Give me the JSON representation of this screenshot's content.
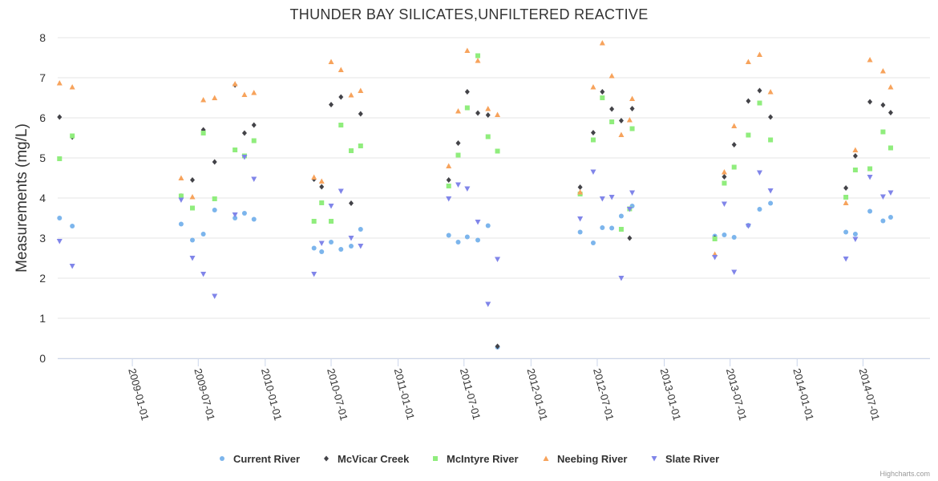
{
  "chart_data": {
    "type": "scatter",
    "title": "THUNDER BAY SILICATES,UNFILTERED REACTIVE",
    "ylabel": "Measurements (mg/L)",
    "xlabel": "",
    "x_axis_type": "datetime",
    "xlim": [
      "2008-06-10",
      "2015-01-01"
    ],
    "ylim": [
      0,
      8
    ],
    "yticks": [
      0,
      1,
      2,
      3,
      4,
      5,
      6,
      7,
      8
    ],
    "xticks": [
      "2009-01-01",
      "2009-07-01",
      "2010-01-01",
      "2010-07-01",
      "2011-01-01",
      "2011-07-01",
      "2012-01-01",
      "2012-07-01",
      "2013-01-01",
      "2013-07-01",
      "2014-01-01",
      "2014-07-01"
    ],
    "grid": true,
    "legend_position": "bottom-center",
    "series": [
      {
        "name": "Current River",
        "color": "#7cb5ec",
        "marker": "circle",
        "points": [
          [
            "2008-06-15",
            3.5
          ],
          [
            "2008-07-20",
            3.3
          ],
          [
            "2009-05-15",
            3.35
          ],
          [
            "2009-06-15",
            2.95
          ],
          [
            "2009-07-15",
            3.1
          ],
          [
            "2009-08-15",
            3.7
          ],
          [
            "2009-10-10",
            3.5
          ],
          [
            "2009-11-05",
            3.62
          ],
          [
            "2009-12-01",
            3.47
          ],
          [
            "2010-05-15",
            2.75
          ],
          [
            "2010-06-05",
            2.66
          ],
          [
            "2010-07-01",
            2.9
          ],
          [
            "2010-07-28",
            2.72
          ],
          [
            "2010-08-25",
            2.8
          ],
          [
            "2010-09-20",
            3.22
          ],
          [
            "2011-05-20",
            3.07
          ],
          [
            "2011-06-15",
            2.9
          ],
          [
            "2011-07-10",
            3.03
          ],
          [
            "2011-08-08",
            2.95
          ],
          [
            "2011-09-05",
            3.31
          ],
          [
            "2011-10-01",
            0.28
          ],
          [
            "2012-05-15",
            3.15
          ],
          [
            "2012-06-20",
            2.88
          ],
          [
            "2012-07-15",
            3.26
          ],
          [
            "2012-08-10",
            3.25
          ],
          [
            "2012-09-05",
            3.55
          ],
          [
            "2012-10-05",
            3.8
          ],
          [
            "2013-05-20",
            3.05
          ],
          [
            "2013-06-15",
            3.08
          ],
          [
            "2013-07-12",
            3.02
          ],
          [
            "2013-08-20",
            3.32
          ],
          [
            "2013-09-20",
            3.72
          ],
          [
            "2013-10-20",
            3.87
          ],
          [
            "2014-05-15",
            3.15
          ],
          [
            "2014-06-10",
            3.1
          ],
          [
            "2014-07-20",
            3.67
          ],
          [
            "2014-08-25",
            3.43
          ],
          [
            "2014-09-15",
            3.52
          ]
        ]
      },
      {
        "name": "McVicar Creek",
        "color": "#434348",
        "marker": "diamond",
        "points": [
          [
            "2008-06-15",
            6.02
          ],
          [
            "2008-07-20",
            5.52
          ],
          [
            "2009-05-15",
            4.05
          ],
          [
            "2009-06-15",
            4.45
          ],
          [
            "2009-07-15",
            5.7
          ],
          [
            "2009-08-15",
            4.9
          ],
          [
            "2009-10-10",
            6.82
          ],
          [
            "2009-11-05",
            5.62
          ],
          [
            "2009-12-01",
            5.82
          ],
          [
            "2010-05-15",
            4.47
          ],
          [
            "2010-06-05",
            4.28
          ],
          [
            "2010-07-01",
            6.33
          ],
          [
            "2010-07-28",
            6.52
          ],
          [
            "2010-08-25",
            3.87
          ],
          [
            "2010-09-20",
            6.1
          ],
          [
            "2011-05-20",
            4.45
          ],
          [
            "2011-06-15",
            5.37
          ],
          [
            "2011-07-10",
            6.65
          ],
          [
            "2011-08-08",
            6.12
          ],
          [
            "2011-09-05",
            6.07
          ],
          [
            "2011-10-01",
            0.3
          ],
          [
            "2012-05-15",
            4.27
          ],
          [
            "2012-06-20",
            5.63
          ],
          [
            "2012-07-15",
            6.65
          ],
          [
            "2012-08-10",
            6.22
          ],
          [
            "2012-09-05",
            5.93
          ],
          [
            "2012-09-28",
            3.0
          ],
          [
            "2012-10-05",
            6.23
          ],
          [
            "2013-05-20",
            3.0
          ],
          [
            "2013-06-15",
            4.53
          ],
          [
            "2013-07-12",
            5.33
          ],
          [
            "2013-08-20",
            6.42
          ],
          [
            "2013-09-20",
            6.68
          ],
          [
            "2013-10-20",
            6.02
          ],
          [
            "2014-05-15",
            4.25
          ],
          [
            "2014-06-10",
            5.05
          ],
          [
            "2014-07-20",
            6.4
          ],
          [
            "2014-08-25",
            6.32
          ],
          [
            "2014-09-15",
            6.13
          ]
        ]
      },
      {
        "name": "McIntyre River",
        "color": "#90ed7d",
        "marker": "square",
        "points": [
          [
            "2008-06-15",
            4.98
          ],
          [
            "2008-07-20",
            5.55
          ],
          [
            "2009-05-15",
            4.05
          ],
          [
            "2009-06-15",
            3.75
          ],
          [
            "2009-07-15",
            5.62
          ],
          [
            "2009-08-15",
            3.98
          ],
          [
            "2009-10-10",
            5.2
          ],
          [
            "2009-11-05",
            5.05
          ],
          [
            "2009-12-01",
            5.43
          ],
          [
            "2010-05-15",
            3.42
          ],
          [
            "2010-06-05",
            3.88
          ],
          [
            "2010-07-01",
            3.42
          ],
          [
            "2010-07-28",
            5.82
          ],
          [
            "2010-08-25",
            5.18
          ],
          [
            "2010-09-20",
            5.3
          ],
          [
            "2011-05-20",
            4.3
          ],
          [
            "2011-06-15",
            5.07
          ],
          [
            "2011-07-10",
            6.25
          ],
          [
            "2011-08-08",
            7.55
          ],
          [
            "2011-09-05",
            5.53
          ],
          [
            "2011-10-01",
            5.17
          ],
          [
            "2012-05-15",
            4.1
          ],
          [
            "2012-06-20",
            5.45
          ],
          [
            "2012-07-15",
            6.5
          ],
          [
            "2012-08-10",
            5.9
          ],
          [
            "2012-09-05",
            3.22
          ],
          [
            "2012-09-28",
            3.73
          ],
          [
            "2012-10-05",
            5.73
          ],
          [
            "2013-05-20",
            2.98
          ],
          [
            "2013-06-15",
            4.37
          ],
          [
            "2013-07-12",
            4.77
          ],
          [
            "2013-08-20",
            5.57
          ],
          [
            "2013-09-20",
            6.37
          ],
          [
            "2013-10-20",
            5.45
          ],
          [
            "2014-05-15",
            4.02
          ],
          [
            "2014-06-10",
            4.7
          ],
          [
            "2014-07-20",
            4.73
          ],
          [
            "2014-08-25",
            5.65
          ],
          [
            "2014-09-15",
            5.25
          ]
        ]
      },
      {
        "name": "Neebing River",
        "color": "#f7a35c",
        "marker": "triangle",
        "points": [
          [
            "2008-06-15",
            6.87
          ],
          [
            "2008-07-20",
            6.77
          ],
          [
            "2009-05-15",
            4.5
          ],
          [
            "2009-06-15",
            4.03
          ],
          [
            "2009-07-15",
            6.45
          ],
          [
            "2009-08-15",
            6.5
          ],
          [
            "2009-10-10",
            6.85
          ],
          [
            "2009-11-05",
            6.58
          ],
          [
            "2009-12-01",
            6.63
          ],
          [
            "2010-05-15",
            4.52
          ],
          [
            "2010-06-05",
            4.42
          ],
          [
            "2010-07-01",
            7.4
          ],
          [
            "2010-07-28",
            7.2
          ],
          [
            "2010-08-25",
            6.57
          ],
          [
            "2010-09-20",
            6.68
          ],
          [
            "2011-05-20",
            4.8
          ],
          [
            "2011-06-15",
            6.17
          ],
          [
            "2011-07-10",
            7.68
          ],
          [
            "2011-08-08",
            7.43
          ],
          [
            "2011-09-05",
            6.23
          ],
          [
            "2011-10-01",
            6.08
          ],
          [
            "2012-05-15",
            4.15
          ],
          [
            "2012-06-20",
            6.77
          ],
          [
            "2012-07-15",
            7.87
          ],
          [
            "2012-08-10",
            7.05
          ],
          [
            "2012-09-05",
            5.58
          ],
          [
            "2012-09-28",
            5.95
          ],
          [
            "2012-10-05",
            6.48
          ],
          [
            "2013-05-20",
            2.6
          ],
          [
            "2013-06-15",
            4.65
          ],
          [
            "2013-07-12",
            5.8
          ],
          [
            "2013-08-20",
            7.4
          ],
          [
            "2013-09-20",
            7.58
          ],
          [
            "2013-10-20",
            6.65
          ],
          [
            "2014-05-15",
            3.88
          ],
          [
            "2014-06-10",
            5.2
          ],
          [
            "2014-07-20",
            7.45
          ],
          [
            "2014-08-25",
            7.17
          ],
          [
            "2014-09-15",
            6.77
          ]
        ]
      },
      {
        "name": "Slate River",
        "color": "#8085e9",
        "marker": "triangle-down",
        "points": [
          [
            "2008-06-15",
            2.92
          ],
          [
            "2008-07-20",
            2.3
          ],
          [
            "2009-05-15",
            3.95
          ],
          [
            "2009-06-15",
            2.5
          ],
          [
            "2009-07-15",
            2.1
          ],
          [
            "2009-08-15",
            1.55
          ],
          [
            "2009-10-10",
            3.58
          ],
          [
            "2009-11-05",
            5.02
          ],
          [
            "2009-12-01",
            4.47
          ],
          [
            "2010-05-15",
            2.1
          ],
          [
            "2010-06-05",
            2.87
          ],
          [
            "2010-07-01",
            3.8
          ],
          [
            "2010-07-28",
            4.17
          ],
          [
            "2010-08-25",
            3.0
          ],
          [
            "2010-09-20",
            2.8
          ],
          [
            "2011-05-20",
            3.98
          ],
          [
            "2011-06-15",
            4.33
          ],
          [
            "2011-07-10",
            4.23
          ],
          [
            "2011-08-08",
            3.4
          ],
          [
            "2011-09-05",
            1.35
          ],
          [
            "2011-10-01",
            2.47
          ],
          [
            "2012-05-15",
            3.48
          ],
          [
            "2012-06-20",
            4.65
          ],
          [
            "2012-07-15",
            3.98
          ],
          [
            "2012-08-10",
            4.02
          ],
          [
            "2012-09-05",
            2.0
          ],
          [
            "2012-09-28",
            3.72
          ],
          [
            "2012-10-05",
            4.13
          ],
          [
            "2013-05-20",
            2.52
          ],
          [
            "2013-06-15",
            3.85
          ],
          [
            "2013-07-12",
            2.15
          ],
          [
            "2013-08-20",
            3.3
          ],
          [
            "2013-09-20",
            4.63
          ],
          [
            "2013-10-20",
            4.18
          ],
          [
            "2014-05-15",
            2.48
          ],
          [
            "2014-06-10",
            2.97
          ],
          [
            "2014-07-20",
            4.52
          ],
          [
            "2014-08-25",
            4.03
          ],
          [
            "2014-09-15",
            4.13
          ]
        ]
      }
    ]
  },
  "credits": "Highcharts.com"
}
